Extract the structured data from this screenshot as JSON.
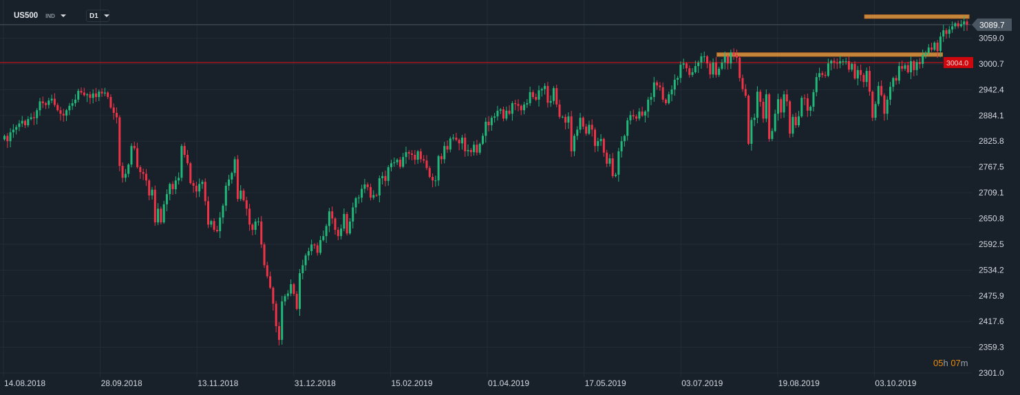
{
  "header": {
    "symbol": "US500",
    "symbol_type": "IND",
    "timeframe": "D1"
  },
  "countdown": {
    "hours": "05",
    "h_unit": "h",
    "minutes": "07",
    "m_unit": "m"
  },
  "colors": {
    "background": "#18202a",
    "up": "#22b87a",
    "down": "#f03447",
    "grid": "#232d37",
    "zone": "#f0a040",
    "level_line": "#c0141b",
    "current_label_bg": "#4a5662"
  },
  "chart_data": {
    "type": "candlestick",
    "symbol": "US500",
    "timeframe": "D1",
    "grid": true,
    "ylim": [
      2301.0,
      3089.7
    ],
    "y_ticks": [
      "3059.0",
      "3000.7",
      "2942.4",
      "2884.1",
      "2825.8",
      "2767.5",
      "2709.1",
      "2650.8",
      "2592.5",
      "2534.2",
      "2475.9",
      "2417.6",
      "2359.3",
      "2301.0"
    ],
    "x_ticks": [
      "14.08.2018",
      "28.09.2018",
      "13.11.2018",
      "31.12.2018",
      "15.02.2019",
      "01.04.2019",
      "17.05.2019",
      "03.07.2019",
      "19.08.2019",
      "03.10.2019"
    ],
    "current_price": "3089.7",
    "level_line": {
      "price": 3004.0,
      "label": "3004.0"
    },
    "zones": [
      {
        "price_low": 3104,
        "price_high": 3112,
        "from_index": 292,
        "to_index": 326
      },
      {
        "price_low": 3018,
        "price_high": 3026,
        "from_index": 242,
        "to_index": 317
      }
    ],
    "first_open": 2830,
    "closes": [
      2838,
      2826,
      2846,
      2852,
      2858,
      2866,
      2872,
      2862,
      2876,
      2880,
      2878,
      2896,
      2916,
      2912,
      2908,
      2918,
      2922,
      2908,
      2896,
      2888,
      2884,
      2896,
      2906,
      2912,
      2920,
      2940,
      2936,
      2930,
      2932,
      2924,
      2934,
      2926,
      2938,
      2934,
      2936,
      2926,
      2902,
      2890,
      2880,
      2770,
      2743,
      2752,
      2773,
      2815,
      2810,
      2767,
      2756,
      2752,
      2737,
      2703,
      2716,
      2642,
      2673,
      2642,
      2683,
      2706,
      2729,
      2717,
      2737,
      2743,
      2815,
      2795,
      2776,
      2731,
      2725,
      2712,
      2729,
      2734,
      2690,
      2637,
      2645,
      2625,
      2622,
      2653,
      2680,
      2725,
      2739,
      2754,
      2785,
      2695,
      2714,
      2692,
      2673,
      2637,
      2625,
      2644,
      2644,
      2592,
      2545,
      2520,
      2494,
      2458,
      2407,
      2376,
      2463,
      2475,
      2481,
      2502,
      2480,
      2446,
      2527,
      2545,
      2567,
      2577,
      2592,
      2590,
      2573,
      2602,
      2611,
      2634,
      2667,
      2651,
      2625,
      2611,
      2628,
      2661,
      2617,
      2644,
      2676,
      2697,
      2698,
      2718,
      2728,
      2722,
      2698,
      2704,
      2703,
      2742,
      2747,
      2736,
      2767,
      2776,
      2778,
      2784,
      2768,
      2790,
      2801,
      2798,
      2795,
      2784,
      2803,
      2785,
      2782,
      2765,
      2745,
      2737,
      2737,
      2792,
      2785,
      2815,
      2807,
      2832,
      2834,
      2829,
      2821,
      2834,
      2803,
      2806,
      2801,
      2818,
      2800,
      2820,
      2838,
      2870,
      2862,
      2879,
      2882,
      2895,
      2898,
      2877,
      2895,
      2888,
      2912,
      2910,
      2906,
      2896,
      2909,
      2912,
      2937,
      2926,
      2920,
      2941,
      2944,
      2951,
      2913,
      2917,
      2946,
      2909,
      2881,
      2881,
      2868,
      2882,
      2803,
      2838,
      2852,
      2879,
      2859,
      2843,
      2863,
      2852,
      2815,
      2826,
      2831,
      2800,
      2775,
      2787,
      2747,
      2750,
      2803,
      2826,
      2838,
      2873,
      2885,
      2882,
      2877,
      2893,
      2884,
      2893,
      2920,
      2926,
      2959,
      2952,
      2948,
      2920,
      2912,
      2932,
      2943,
      2965,
      2969,
      2999,
      3002,
      2991,
      2976,
      2982,
      2996,
      3004,
      3018,
      3018,
      3002,
      2977,
      3004,
      2976,
      2990,
      3004,
      3018,
      3002,
      3027,
      3021,
      3015,
      2969,
      2944,
      2929,
      2820,
      2874,
      2879,
      2938,
      2915,
      2877,
      2932,
      2831,
      2849,
      2888,
      2921,
      2891,
      2932,
      2916,
      2843,
      2881,
      2862,
      2882,
      2924,
      2923,
      2895,
      2904,
      2937,
      2971,
      2980,
      2976,
      2974,
      3002,
      3008,
      3004,
      3002,
      3007,
      3007,
      3007,
      2988,
      3001,
      2968,
      2987,
      2976,
      2960,
      2985,
      2938,
      2879,
      2910,
      2951,
      2930,
      2888,
      2920,
      2949,
      2969,
      2963,
      2996,
      2990,
      2998,
      2982,
      3007,
      2987,
      3005,
      3001,
      3021,
      3026,
      3038,
      3033,
      3049,
      3030,
      3063,
      3077,
      3069,
      3079,
      3086,
      3093,
      3086,
      3091,
      3097,
      3089.7
    ]
  }
}
